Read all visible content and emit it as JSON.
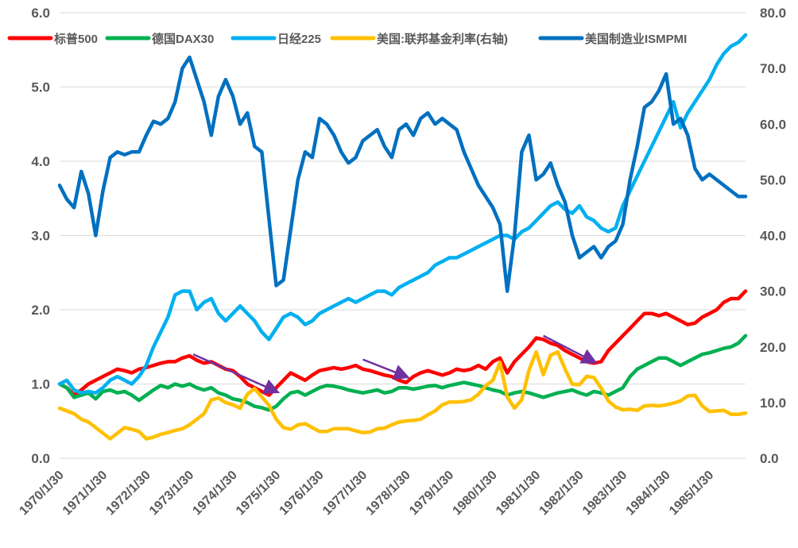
{
  "chart_data": {
    "type": "line",
    "title": "",
    "xlabel": "",
    "ylabel": "",
    "x_start": "1970-01",
    "x_end": "1985-11",
    "x_tick_labels": [
      "1970/1/30",
      "1971/1/30",
      "1972/1/30",
      "1973/1/30",
      "1974/1/30",
      "1975/1/30",
      "1976/1/30",
      "1977/1/30",
      "1978/1/30",
      "1979/1/30",
      "1980/1/30",
      "1981/1/30",
      "1982/1/30",
      "1983/1/30",
      "1984/1/30",
      "1985/1/30"
    ],
    "y_left": {
      "min": 0,
      "max": 6,
      "ticks": [
        "0.0",
        "1.0",
        "2.0",
        "3.0",
        "4.0",
        "5.0",
        "6.0"
      ]
    },
    "y_right": {
      "min": 0,
      "max": 80,
      "ticks": [
        "0.0",
        "10.0",
        "20.0",
        "30.0",
        "40.0",
        "50.0",
        "60.0",
        "70.0",
        "80.0"
      ]
    },
    "grid": true,
    "legend_position": "top",
    "series": [
      {
        "name": "标普500",
        "color": "#ff0000",
        "axis": "left",
        "x": [
          "1970-01",
          "1970-03",
          "1970-05",
          "1970-07",
          "1970-09",
          "1970-11",
          "1971-01",
          "1971-03",
          "1971-05",
          "1971-07",
          "1971-09",
          "1971-11",
          "1972-01",
          "1972-03",
          "1972-05",
          "1972-07",
          "1972-09",
          "1972-11",
          "1973-01",
          "1973-03",
          "1973-05",
          "1973-07",
          "1973-09",
          "1973-11",
          "1974-01",
          "1974-03",
          "1974-05",
          "1974-07",
          "1974-09",
          "1974-11",
          "1975-01",
          "1975-03",
          "1975-05",
          "1975-07",
          "1975-09",
          "1975-11",
          "1976-01",
          "1976-03",
          "1976-05",
          "1976-07",
          "1976-09",
          "1976-11",
          "1977-01",
          "1977-03",
          "1977-05",
          "1977-07",
          "1977-09",
          "1977-11",
          "1978-01",
          "1978-03",
          "1978-05",
          "1978-07",
          "1978-09",
          "1978-11",
          "1979-01",
          "1979-03",
          "1979-05",
          "1979-07",
          "1979-09",
          "1979-11",
          "1980-01",
          "1980-03",
          "1980-05",
          "1980-07",
          "1980-09",
          "1980-11",
          "1981-01",
          "1981-03",
          "1981-05",
          "1981-07",
          "1981-09",
          "1981-11",
          "1982-01",
          "1982-03",
          "1982-05",
          "1982-07",
          "1982-09",
          "1982-11",
          "1983-01",
          "1983-03",
          "1983-05",
          "1983-07",
          "1983-09",
          "1983-11",
          "1984-01",
          "1984-03",
          "1984-05",
          "1984-07",
          "1984-09",
          "1984-11",
          "1985-01",
          "1985-03",
          "1985-05",
          "1985-07",
          "1985-09",
          "1985-11"
        ],
        "values": [
          1.0,
          0.95,
          0.85,
          0.92,
          1.0,
          1.05,
          1.1,
          1.15,
          1.2,
          1.18,
          1.15,
          1.2,
          1.22,
          1.25,
          1.28,
          1.3,
          1.3,
          1.35,
          1.38,
          1.32,
          1.28,
          1.3,
          1.25,
          1.2,
          1.18,
          1.1,
          1.0,
          0.95,
          0.9,
          0.85,
          0.95,
          1.05,
          1.15,
          1.1,
          1.05,
          1.12,
          1.18,
          1.2,
          1.22,
          1.2,
          1.22,
          1.25,
          1.2,
          1.18,
          1.15,
          1.12,
          1.1,
          1.05,
          1.02,
          1.1,
          1.15,
          1.18,
          1.15,
          1.12,
          1.15,
          1.2,
          1.18,
          1.2,
          1.25,
          1.2,
          1.3,
          1.35,
          1.15,
          1.3,
          1.4,
          1.5,
          1.62,
          1.6,
          1.55,
          1.52,
          1.45,
          1.4,
          1.35,
          1.3,
          1.28,
          1.3,
          1.45,
          1.55,
          1.65,
          1.75,
          1.85,
          1.95,
          1.95,
          1.92,
          1.95,
          1.9,
          1.85,
          1.8,
          1.82,
          1.9,
          1.95,
          2.0,
          2.1,
          2.15,
          2.15,
          2.25
        ]
      },
      {
        "name": "德国DAX30",
        "color": "#00b050",
        "axis": "left",
        "x": [
          "1970-01",
          "1970-03",
          "1970-05",
          "1970-07",
          "1970-09",
          "1970-11",
          "1971-01",
          "1971-03",
          "1971-05",
          "1971-07",
          "1971-09",
          "1971-11",
          "1972-01",
          "1972-03",
          "1972-05",
          "1972-07",
          "1972-09",
          "1972-11",
          "1973-01",
          "1973-03",
          "1973-05",
          "1973-07",
          "1973-09",
          "1973-11",
          "1974-01",
          "1974-03",
          "1974-05",
          "1974-07",
          "1974-09",
          "1974-11",
          "1975-01",
          "1975-03",
          "1975-05",
          "1975-07",
          "1975-09",
          "1975-11",
          "1976-01",
          "1976-03",
          "1976-05",
          "1976-07",
          "1976-09",
          "1976-11",
          "1977-01",
          "1977-03",
          "1977-05",
          "1977-07",
          "1977-09",
          "1977-11",
          "1978-01",
          "1978-03",
          "1978-05",
          "1978-07",
          "1978-09",
          "1978-11",
          "1979-01",
          "1979-03",
          "1979-05",
          "1979-07",
          "1979-09",
          "1979-11",
          "1980-01",
          "1980-03",
          "1980-05",
          "1980-07",
          "1980-09",
          "1980-11",
          "1981-01",
          "1981-03",
          "1981-05",
          "1981-07",
          "1981-09",
          "1981-11",
          "1982-01",
          "1982-03",
          "1982-05",
          "1982-07",
          "1982-09",
          "1982-11",
          "1983-01",
          "1983-03",
          "1983-05",
          "1983-07",
          "1983-09",
          "1983-11",
          "1984-01",
          "1984-03",
          "1984-05",
          "1984-07",
          "1984-09",
          "1984-11",
          "1985-01",
          "1985-03",
          "1985-05",
          "1985-07",
          "1985-09",
          "1985-11"
        ],
        "values": [
          1.0,
          0.95,
          0.82,
          0.85,
          0.88,
          0.8,
          0.9,
          0.92,
          0.88,
          0.9,
          0.85,
          0.78,
          0.85,
          0.92,
          0.98,
          0.95,
          1.0,
          0.97,
          1.0,
          0.95,
          0.92,
          0.95,
          0.88,
          0.85,
          0.8,
          0.78,
          0.75,
          0.7,
          0.68,
          0.65,
          0.7,
          0.8,
          0.88,
          0.9,
          0.85,
          0.9,
          0.95,
          0.98,
          0.97,
          0.95,
          0.92,
          0.9,
          0.88,
          0.9,
          0.92,
          0.88,
          0.9,
          0.95,
          0.95,
          0.93,
          0.95,
          0.97,
          0.98,
          0.95,
          0.98,
          1.0,
          1.02,
          1.0,
          0.98,
          0.95,
          0.92,
          0.9,
          0.85,
          0.88,
          0.9,
          0.88,
          0.85,
          0.82,
          0.85,
          0.88,
          0.9,
          0.92,
          0.88,
          0.85,
          0.9,
          0.88,
          0.85,
          0.9,
          0.95,
          1.1,
          1.2,
          1.25,
          1.3,
          1.35,
          1.35,
          1.3,
          1.25,
          1.3,
          1.35,
          1.4,
          1.42,
          1.45,
          1.48,
          1.5,
          1.55,
          1.65
        ]
      },
      {
        "name": "日经225",
        "color": "#00b0f0",
        "axis": "left",
        "x": [
          "1970-01",
          "1970-03",
          "1970-05",
          "1970-07",
          "1970-09",
          "1970-11",
          "1971-01",
          "1971-03",
          "1971-05",
          "1971-07",
          "1971-09",
          "1971-11",
          "1972-01",
          "1972-03",
          "1972-05",
          "1972-07",
          "1972-09",
          "1972-11",
          "1973-01",
          "1973-03",
          "1973-05",
          "1973-07",
          "1973-09",
          "1973-11",
          "1974-01",
          "1974-03",
          "1974-05",
          "1974-07",
          "1974-09",
          "1974-11",
          "1975-01",
          "1975-03",
          "1975-05",
          "1975-07",
          "1975-09",
          "1975-11",
          "1976-01",
          "1976-03",
          "1976-05",
          "1976-07",
          "1976-09",
          "1976-11",
          "1977-01",
          "1977-03",
          "1977-05",
          "1977-07",
          "1977-09",
          "1977-11",
          "1978-01",
          "1978-03",
          "1978-05",
          "1978-07",
          "1978-09",
          "1978-11",
          "1979-01",
          "1979-03",
          "1979-05",
          "1979-07",
          "1979-09",
          "1979-11",
          "1980-01",
          "1980-03",
          "1980-05",
          "1980-07",
          "1980-09",
          "1980-11",
          "1981-01",
          "1981-03",
          "1981-05",
          "1981-07",
          "1981-09",
          "1981-11",
          "1982-01",
          "1982-03",
          "1982-05",
          "1982-07",
          "1982-09",
          "1982-11",
          "1983-01",
          "1983-03",
          "1983-05",
          "1983-07",
          "1983-09",
          "1983-11",
          "1984-01",
          "1984-03",
          "1984-05",
          "1984-07",
          "1984-09",
          "1984-11",
          "1985-01",
          "1985-03",
          "1985-05",
          "1985-07",
          "1985-09",
          "1985-11"
        ],
        "values": [
          1.0,
          1.05,
          0.92,
          0.88,
          0.9,
          0.88,
          0.95,
          1.05,
          1.1,
          1.05,
          1.0,
          1.1,
          1.25,
          1.5,
          1.7,
          1.9,
          2.2,
          2.25,
          2.25,
          2.0,
          2.1,
          2.15,
          1.95,
          1.85,
          1.95,
          2.05,
          1.95,
          1.85,
          1.7,
          1.6,
          1.75,
          1.9,
          1.95,
          1.9,
          1.8,
          1.85,
          1.95,
          2.0,
          2.05,
          2.1,
          2.15,
          2.1,
          2.15,
          2.2,
          2.25,
          2.25,
          2.2,
          2.3,
          2.35,
          2.4,
          2.45,
          2.5,
          2.6,
          2.65,
          2.7,
          2.7,
          2.75,
          2.8,
          2.85,
          2.9,
          2.95,
          3.0,
          3.0,
          2.95,
          3.05,
          3.1,
          3.2,
          3.3,
          3.4,
          3.45,
          3.35,
          3.3,
          3.4,
          3.25,
          3.2,
          3.1,
          3.05,
          3.1,
          3.4,
          3.6,
          3.8,
          4.0,
          4.2,
          4.4,
          4.6,
          4.8,
          4.45,
          4.65,
          4.8,
          4.95,
          5.1,
          5.3,
          5.45,
          5.55,
          5.6,
          5.7
        ]
      },
      {
        "name": "美国:联邦基金利率(右轴)",
        "color": "#ffc000",
        "axis": "right",
        "x": [
          "1970-01",
          "1970-03",
          "1970-05",
          "1970-07",
          "1970-09",
          "1970-11",
          "1971-01",
          "1971-03",
          "1971-05",
          "1971-07",
          "1971-09",
          "1971-11",
          "1972-01",
          "1972-03",
          "1972-05",
          "1972-07",
          "1972-09",
          "1972-11",
          "1973-01",
          "1973-03",
          "1973-05",
          "1973-07",
          "1973-09",
          "1973-11",
          "1974-01",
          "1974-03",
          "1974-05",
          "1974-07",
          "1974-09",
          "1974-11",
          "1975-01",
          "1975-03",
          "1975-05",
          "1975-07",
          "1975-09",
          "1975-11",
          "1976-01",
          "1976-03",
          "1976-05",
          "1976-07",
          "1976-09",
          "1976-11",
          "1977-01",
          "1977-03",
          "1977-05",
          "1977-07",
          "1977-09",
          "1977-11",
          "1978-01",
          "1978-03",
          "1978-05",
          "1978-07",
          "1978-09",
          "1978-11",
          "1979-01",
          "1979-03",
          "1979-05",
          "1979-07",
          "1979-09",
          "1979-11",
          "1980-01",
          "1980-03",
          "1980-05",
          "1980-07",
          "1980-09",
          "1980-11",
          "1981-01",
          "1981-03",
          "1981-05",
          "1981-07",
          "1981-09",
          "1981-11",
          "1982-01",
          "1982-03",
          "1982-05",
          "1982-07",
          "1982-09",
          "1982-11",
          "1983-01",
          "1983-03",
          "1983-05",
          "1983-07",
          "1983-09",
          "1983-11",
          "1984-01",
          "1984-03",
          "1984-05",
          "1984-07",
          "1984-09",
          "1984-11",
          "1985-01",
          "1985-03",
          "1985-05",
          "1985-07",
          "1985-09",
          "1985-11"
        ],
        "values": [
          9.0,
          8.5,
          8.0,
          7.0,
          6.5,
          5.5,
          4.5,
          3.5,
          4.5,
          5.5,
          5.2,
          4.8,
          3.5,
          3.8,
          4.3,
          4.6,
          5.0,
          5.3,
          6.0,
          7.0,
          8.0,
          10.5,
          10.8,
          10.0,
          9.6,
          9.0,
          11.5,
          12.5,
          11.0,
          9.5,
          7.0,
          5.5,
          5.2,
          6.0,
          6.2,
          5.5,
          4.8,
          4.8,
          5.3,
          5.3,
          5.3,
          4.9,
          4.6,
          4.7,
          5.3,
          5.4,
          6.0,
          6.5,
          6.7,
          6.8,
          7.0,
          7.8,
          8.5,
          9.6,
          10.1,
          10.1,
          10.2,
          10.5,
          11.5,
          13.0,
          14.0,
          17.2,
          11.0,
          9.0,
          10.5,
          15.8,
          19.1,
          15.0,
          18.5,
          19.1,
          16.0,
          13.3,
          13.2,
          14.7,
          14.5,
          12.6,
          10.3,
          9.2,
          8.7,
          8.8,
          8.6,
          9.4,
          9.5,
          9.4,
          9.6,
          9.9,
          10.3,
          11.2,
          11.3,
          9.4,
          8.4,
          8.5,
          8.6,
          7.9,
          7.9,
          8.1
        ]
      },
      {
        "name": "美国制造业ISMPMI",
        "color": "#0070c0",
        "axis": "right",
        "x": [
          "1970-01",
          "1970-03",
          "1970-05",
          "1970-07",
          "1970-09",
          "1970-11",
          "1971-01",
          "1971-03",
          "1971-05",
          "1971-07",
          "1971-09",
          "1971-11",
          "1972-01",
          "1972-03",
          "1972-05",
          "1972-07",
          "1972-09",
          "1972-11",
          "1973-01",
          "1973-03",
          "1973-05",
          "1973-07",
          "1973-09",
          "1973-11",
          "1974-01",
          "1974-03",
          "1974-05",
          "1974-07",
          "1974-09",
          "1974-11",
          "1975-01",
          "1975-03",
          "1975-05",
          "1975-07",
          "1975-09",
          "1975-11",
          "1976-01",
          "1976-03",
          "1976-05",
          "1976-07",
          "1976-09",
          "1976-11",
          "1977-01",
          "1977-03",
          "1977-05",
          "1977-07",
          "1977-09",
          "1977-11",
          "1978-01",
          "1978-03",
          "1978-05",
          "1978-07",
          "1978-09",
          "1978-11",
          "1979-01",
          "1979-03",
          "1979-05",
          "1979-07",
          "1979-09",
          "1979-11",
          "1980-01",
          "1980-03",
          "1980-05",
          "1980-07",
          "1980-09",
          "1980-11",
          "1981-01",
          "1981-03",
          "1981-05",
          "1981-07",
          "1981-09",
          "1981-11",
          "1982-01",
          "1982-03",
          "1982-05",
          "1982-07",
          "1982-09",
          "1982-11",
          "1983-01",
          "1983-03",
          "1983-05",
          "1983-07",
          "1983-09",
          "1983-11",
          "1984-01",
          "1984-03",
          "1984-05",
          "1984-07",
          "1984-09",
          "1984-11",
          "1985-01",
          "1985-03",
          "1985-05",
          "1985-07",
          "1985-09",
          "1985-11"
        ],
        "values": [
          49.0,
          46.5,
          45.0,
          51.5,
          47.5,
          40.0,
          48.0,
          54.0,
          55.0,
          54.5,
          55.0,
          55.0,
          58.0,
          60.5,
          60.0,
          61.0,
          64.0,
          70.0,
          72.0,
          68.0,
          64.0,
          58.0,
          65.0,
          68.0,
          65.0,
          60.0,
          62.0,
          56.0,
          55.0,
          43.0,
          31.0,
          32.0,
          41.0,
          50.0,
          55.0,
          54.0,
          61.0,
          60.0,
          58.0,
          55.0,
          53.0,
          54.0,
          57.0,
          58.0,
          59.0,
          56.0,
          54.0,
          59.0,
          60.0,
          58.0,
          61.0,
          62.0,
          60.0,
          61.0,
          60.0,
          59.0,
          55.0,
          52.0,
          49.0,
          47.0,
          45.0,
          42.0,
          30.0,
          40.0,
          55.0,
          58.0,
          50.0,
          51.0,
          53.0,
          49.0,
          46.0,
          40.0,
          36.0,
          37.0,
          38.0,
          36.0,
          38.0,
          39.0,
          42.0,
          50.0,
          56.0,
          63.0,
          64.0,
          66.0,
          69.0,
          60.0,
          61.0,
          58.0,
          52.0,
          50.0,
          51.0,
          50.0,
          49.0,
          48.0,
          47.0,
          47.0
        ]
      }
    ],
    "annotations": [
      {
        "type": "arrow",
        "color": "#7030a0",
        "from": [
          "1973-02",
          1.4
        ],
        "to": [
          "1975-01",
          0.9
        ]
      },
      {
        "type": "arrow",
        "color": "#7030a0",
        "from": [
          "1977-01",
          1.33
        ],
        "to": [
          "1978-01",
          1.1
        ]
      },
      {
        "type": "arrow",
        "color": "#7030a0",
        "from": [
          "1981-03",
          1.65
        ],
        "to": [
          "1982-05",
          1.3
        ]
      }
    ]
  }
}
